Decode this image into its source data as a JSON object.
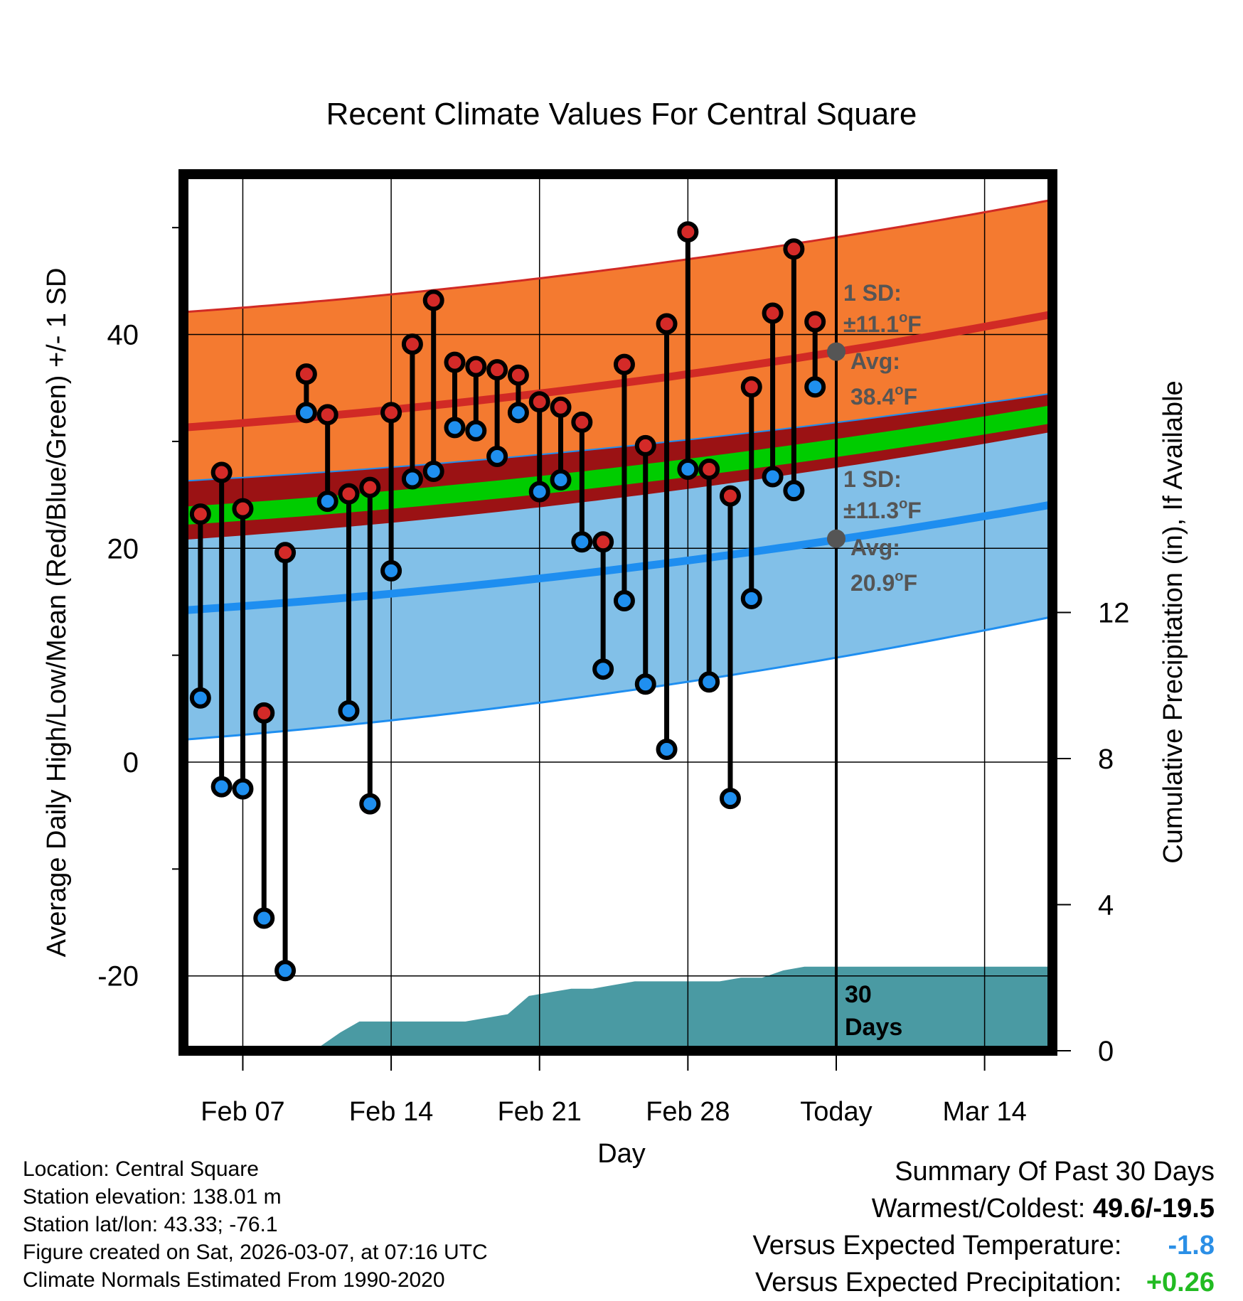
{
  "colors": {
    "high_band": "#f47a30",
    "high_edge": "#d12a25",
    "low_band": "#82c0e8",
    "low_edge": "#1e8ef0",
    "mean_band": "#9b1214",
    "mean_line": "#00cc00",
    "precip": "#4a9aa3",
    "high_dot": "#d42a28",
    "low_dot": "#1f8fef",
    "annotation": "#555555",
    "temp_anomaly": "#2b8fe6",
    "precip_anomaly": "#22bb22"
  },
  "chart_data": {
    "type": "line",
    "title": "Recent Climate Values For Central Square",
    "xlabel": "Day",
    "ylabel": "Average Daily High/Low/Mean (Red/Blue/Green) +/- 1 SD",
    "ylabel_right": "Cumulative Precipitation (in), If Available",
    "xlim": [
      -0.8,
      40.2
    ],
    "ylim": [
      -27,
      55
    ],
    "ylim_right": [
      0,
      24
    ],
    "x_ticks": [
      {
        "x": 2,
        "label": "Feb 07"
      },
      {
        "x": 9,
        "label": "Feb 14"
      },
      {
        "x": 16,
        "label": "Feb 21"
      },
      {
        "x": 23,
        "label": "Feb 28"
      },
      {
        "x": 30,
        "label": "Today"
      },
      {
        "x": 37,
        "label": "Mar 14"
      }
    ],
    "y_ticks": [
      -20,
      0,
      20,
      40
    ],
    "y_ticks_right": [
      0,
      4,
      8,
      12
    ],
    "days": [
      0,
      1,
      2,
      3,
      4,
      5,
      6,
      7,
      8,
      9,
      10,
      11,
      12,
      13,
      14,
      15,
      16,
      17,
      18,
      19,
      20,
      21,
      22,
      23,
      24,
      25,
      26,
      27,
      28,
      29
    ],
    "highs": [
      23.2,
      27.1,
      23.7,
      4.6,
      19.6,
      36.3,
      32.5,
      25.1,
      25.7,
      32.7,
      39.1,
      43.2,
      37.4,
      37.0,
      36.7,
      36.2,
      33.7,
      33.2,
      31.8,
      20.6,
      37.2,
      29.6,
      41.0,
      49.6,
      27.4,
      24.9,
      35.1,
      42.0,
      48.0,
      41.2
    ],
    "lows": [
      6.0,
      -2.3,
      -2.5,
      -14.6,
      -19.5,
      32.7,
      24.4,
      4.8,
      -3.9,
      17.9,
      26.5,
      27.2,
      31.3,
      31.0,
      28.6,
      32.7,
      25.3,
      26.4,
      20.6,
      8.7,
      15.1,
      7.3,
      1.2,
      27.4,
      7.5,
      -3.4,
      15.3,
      26.7,
      25.4,
      35.1
    ],
    "normals": {
      "high_avg": {
        "start": 31.3,
        "end": 41.9
      },
      "high_upper": {
        "start": 42.1,
        "end": 52.6
      },
      "high_lower": {
        "start": 26.3,
        "end": 34.5
      },
      "low_avg": {
        "start": 14.2,
        "end": 24.1
      },
      "low_upper": {
        "start": 26.3,
        "end": 34.5
      },
      "low_lower": {
        "start": 2.1,
        "end": 13.6
      },
      "mean_upper": {
        "start": 23.9,
        "end": 33.4
      },
      "mean_lower": {
        "start": 22.2,
        "end": 31.7
      },
      "mean_band_lower": {
        "start": 20.8,
        "end": 30.9
      }
    },
    "precip_cumulative": [
      [
        3.5,
        0
      ],
      [
        4.5,
        0.1
      ],
      [
        5.6,
        0.1
      ],
      [
        6.6,
        0.5
      ],
      [
        7.5,
        0.8
      ],
      [
        8.5,
        0.8
      ],
      [
        9.5,
        0.8
      ],
      [
        10.5,
        0.8
      ],
      [
        11.5,
        0.8
      ],
      [
        12.5,
        0.8
      ],
      [
        13.5,
        0.9
      ],
      [
        14.5,
        1.0
      ],
      [
        15.5,
        1.5
      ],
      [
        16.5,
        1.6
      ],
      [
        17.5,
        1.7
      ],
      [
        18.5,
        1.7
      ],
      [
        19.5,
        1.8
      ],
      [
        20.5,
        1.9
      ],
      [
        21.5,
        1.9
      ],
      [
        22.5,
        1.9
      ],
      [
        23.5,
        1.9
      ],
      [
        24.5,
        1.9
      ],
      [
        25.5,
        2.0
      ],
      [
        26.5,
        2.0
      ],
      [
        27.5,
        2.2
      ],
      [
        28.5,
        2.3
      ],
      [
        29.5,
        2.3
      ],
      [
        40.2,
        2.3
      ]
    ],
    "today_x": 30,
    "window_label": {
      "line1": "30",
      "line2": "Days"
    },
    "high_annotation": {
      "line1": "1 SD:",
      "line2": "±11.1",
      "line3": "Avg:",
      "line4": "38.4",
      "unit": "F",
      "degree": "o",
      "avg": 38.4
    },
    "low_annotation": {
      "line1": "1 SD:",
      "line2": "±11.3",
      "line3": "Avg:",
      "line4": "20.9",
      "unit": "F",
      "degree": "o",
      "avg": 20.9
    }
  },
  "footer": {
    "location": "Location: Central Square",
    "elevation": "Station elevation: 138.01 m",
    "latlon": "Station lat/lon: 43.33; -76.1",
    "created": "Figure created on Sat, 2026-03-07, at 07:16 UTC",
    "normals": "Climate Normals Estimated From 1990-2020"
  },
  "summary": {
    "title": "Summary Of Past 30 Days",
    "warm_cold_label": "Warmest/Coldest:",
    "warm_cold_value": "49.6/-19.5",
    "temp_label": "Versus Expected Temperature:",
    "temp_value": "-1.8",
    "precip_label": "Versus Expected Precipitation:",
    "precip_value": "+0.26"
  }
}
